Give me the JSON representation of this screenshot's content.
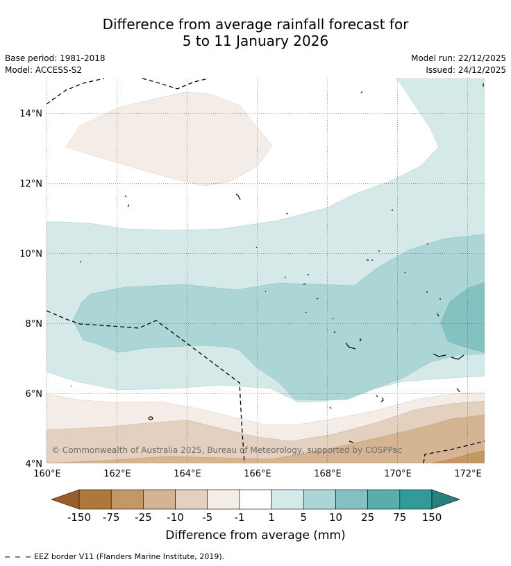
{
  "title_line1": "Difference from average rainfall forecast for",
  "title_line2": "5 to 11 January 2026",
  "meta": {
    "base_period": "Base period: 1981-2018",
    "model": "Model: ACCESS-S2",
    "model_run": "Model run: 22/12/2025",
    "issued": "Issued: 24/12/2025"
  },
  "copyright": "© Commonwealth of Australia 2025, Bureau of Meteorology, supported by COSPPac",
  "map": {
    "lon_range": [
      160,
      172.5
    ],
    "lat_range": [
      4,
      15
    ],
    "lon_ticks": [
      "160°E",
      "162°E",
      "164°E",
      "166°E",
      "168°E",
      "170°E",
      "172°E"
    ],
    "lat_ticks": [
      "4°N",
      "6°N",
      "8°N",
      "10°N",
      "12°N",
      "14°N"
    ]
  },
  "colorbar": {
    "title": "Difference from average (mm)",
    "tick_labels": [
      "-150",
      "-75",
      "-25",
      "-10",
      "-5",
      "-1",
      "1",
      "5",
      "10",
      "25",
      "75",
      "150"
    ],
    "colors": [
      "#9b5e2b",
      "#b0773c",
      "#c49767",
      "#d5b493",
      "#e4d0bf",
      "#f4ede7",
      "#ffffff",
      "#d5e9e8",
      "#acd6d6",
      "#84c1c1",
      "#5aadad",
      "#339a9a",
      "#2a7f81"
    ]
  },
  "legend": {
    "eez_label": "EEZ border V11 (Flanders Marine Institute, 2019)."
  }
}
